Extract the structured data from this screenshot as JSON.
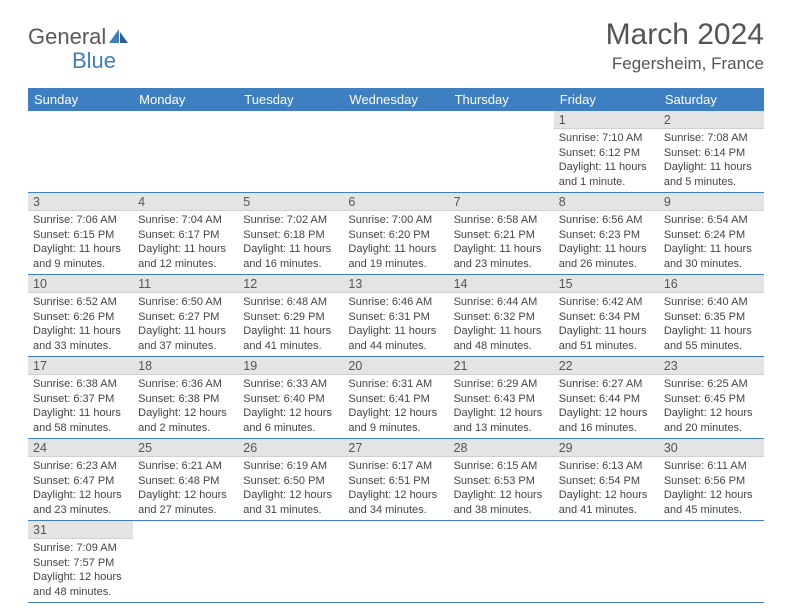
{
  "brand": {
    "general": "General",
    "blue": "Blue"
  },
  "title": {
    "month": "March 2024",
    "location": "Fegersheim, France"
  },
  "colors": {
    "header_bg": "#3e7fc1",
    "header_text": "#ffffff",
    "daynum_bg": "#e4e4e4",
    "row_border": "#3e7fc1",
    "text": "#444444"
  },
  "weekdays": [
    "Sunday",
    "Monday",
    "Tuesday",
    "Wednesday",
    "Thursday",
    "Friday",
    "Saturday"
  ],
  "grid": [
    [
      null,
      null,
      null,
      null,
      null,
      {
        "n": "1",
        "sr": "Sunrise: 7:10 AM",
        "ss": "Sunset: 6:12 PM",
        "dl": "Daylight: 11 hours and 1 minute."
      },
      {
        "n": "2",
        "sr": "Sunrise: 7:08 AM",
        "ss": "Sunset: 6:14 PM",
        "dl": "Daylight: 11 hours and 5 minutes."
      }
    ],
    [
      {
        "n": "3",
        "sr": "Sunrise: 7:06 AM",
        "ss": "Sunset: 6:15 PM",
        "dl": "Daylight: 11 hours and 9 minutes."
      },
      {
        "n": "4",
        "sr": "Sunrise: 7:04 AM",
        "ss": "Sunset: 6:17 PM",
        "dl": "Daylight: 11 hours and 12 minutes."
      },
      {
        "n": "5",
        "sr": "Sunrise: 7:02 AM",
        "ss": "Sunset: 6:18 PM",
        "dl": "Daylight: 11 hours and 16 minutes."
      },
      {
        "n": "6",
        "sr": "Sunrise: 7:00 AM",
        "ss": "Sunset: 6:20 PM",
        "dl": "Daylight: 11 hours and 19 minutes."
      },
      {
        "n": "7",
        "sr": "Sunrise: 6:58 AM",
        "ss": "Sunset: 6:21 PM",
        "dl": "Daylight: 11 hours and 23 minutes."
      },
      {
        "n": "8",
        "sr": "Sunrise: 6:56 AM",
        "ss": "Sunset: 6:23 PM",
        "dl": "Daylight: 11 hours and 26 minutes."
      },
      {
        "n": "9",
        "sr": "Sunrise: 6:54 AM",
        "ss": "Sunset: 6:24 PM",
        "dl": "Daylight: 11 hours and 30 minutes."
      }
    ],
    [
      {
        "n": "10",
        "sr": "Sunrise: 6:52 AM",
        "ss": "Sunset: 6:26 PM",
        "dl": "Daylight: 11 hours and 33 minutes."
      },
      {
        "n": "11",
        "sr": "Sunrise: 6:50 AM",
        "ss": "Sunset: 6:27 PM",
        "dl": "Daylight: 11 hours and 37 minutes."
      },
      {
        "n": "12",
        "sr": "Sunrise: 6:48 AM",
        "ss": "Sunset: 6:29 PM",
        "dl": "Daylight: 11 hours and 41 minutes."
      },
      {
        "n": "13",
        "sr": "Sunrise: 6:46 AM",
        "ss": "Sunset: 6:31 PM",
        "dl": "Daylight: 11 hours and 44 minutes."
      },
      {
        "n": "14",
        "sr": "Sunrise: 6:44 AM",
        "ss": "Sunset: 6:32 PM",
        "dl": "Daylight: 11 hours and 48 minutes."
      },
      {
        "n": "15",
        "sr": "Sunrise: 6:42 AM",
        "ss": "Sunset: 6:34 PM",
        "dl": "Daylight: 11 hours and 51 minutes."
      },
      {
        "n": "16",
        "sr": "Sunrise: 6:40 AM",
        "ss": "Sunset: 6:35 PM",
        "dl": "Daylight: 11 hours and 55 minutes."
      }
    ],
    [
      {
        "n": "17",
        "sr": "Sunrise: 6:38 AM",
        "ss": "Sunset: 6:37 PM",
        "dl": "Daylight: 11 hours and 58 minutes."
      },
      {
        "n": "18",
        "sr": "Sunrise: 6:36 AM",
        "ss": "Sunset: 6:38 PM",
        "dl": "Daylight: 12 hours and 2 minutes."
      },
      {
        "n": "19",
        "sr": "Sunrise: 6:33 AM",
        "ss": "Sunset: 6:40 PM",
        "dl": "Daylight: 12 hours and 6 minutes."
      },
      {
        "n": "20",
        "sr": "Sunrise: 6:31 AM",
        "ss": "Sunset: 6:41 PM",
        "dl": "Daylight: 12 hours and 9 minutes."
      },
      {
        "n": "21",
        "sr": "Sunrise: 6:29 AM",
        "ss": "Sunset: 6:43 PM",
        "dl": "Daylight: 12 hours and 13 minutes."
      },
      {
        "n": "22",
        "sr": "Sunrise: 6:27 AM",
        "ss": "Sunset: 6:44 PM",
        "dl": "Daylight: 12 hours and 16 minutes."
      },
      {
        "n": "23",
        "sr": "Sunrise: 6:25 AM",
        "ss": "Sunset: 6:45 PM",
        "dl": "Daylight: 12 hours and 20 minutes."
      }
    ],
    [
      {
        "n": "24",
        "sr": "Sunrise: 6:23 AM",
        "ss": "Sunset: 6:47 PM",
        "dl": "Daylight: 12 hours and 23 minutes."
      },
      {
        "n": "25",
        "sr": "Sunrise: 6:21 AM",
        "ss": "Sunset: 6:48 PM",
        "dl": "Daylight: 12 hours and 27 minutes."
      },
      {
        "n": "26",
        "sr": "Sunrise: 6:19 AM",
        "ss": "Sunset: 6:50 PM",
        "dl": "Daylight: 12 hours and 31 minutes."
      },
      {
        "n": "27",
        "sr": "Sunrise: 6:17 AM",
        "ss": "Sunset: 6:51 PM",
        "dl": "Daylight: 12 hours and 34 minutes."
      },
      {
        "n": "28",
        "sr": "Sunrise: 6:15 AM",
        "ss": "Sunset: 6:53 PM",
        "dl": "Daylight: 12 hours and 38 minutes."
      },
      {
        "n": "29",
        "sr": "Sunrise: 6:13 AM",
        "ss": "Sunset: 6:54 PM",
        "dl": "Daylight: 12 hours and 41 minutes."
      },
      {
        "n": "30",
        "sr": "Sunrise: 6:11 AM",
        "ss": "Sunset: 6:56 PM",
        "dl": "Daylight: 12 hours and 45 minutes."
      }
    ],
    [
      {
        "n": "31",
        "sr": "Sunrise: 7:09 AM",
        "ss": "Sunset: 7:57 PM",
        "dl": "Daylight: 12 hours and 48 minutes."
      },
      null,
      null,
      null,
      null,
      null,
      null
    ]
  ]
}
